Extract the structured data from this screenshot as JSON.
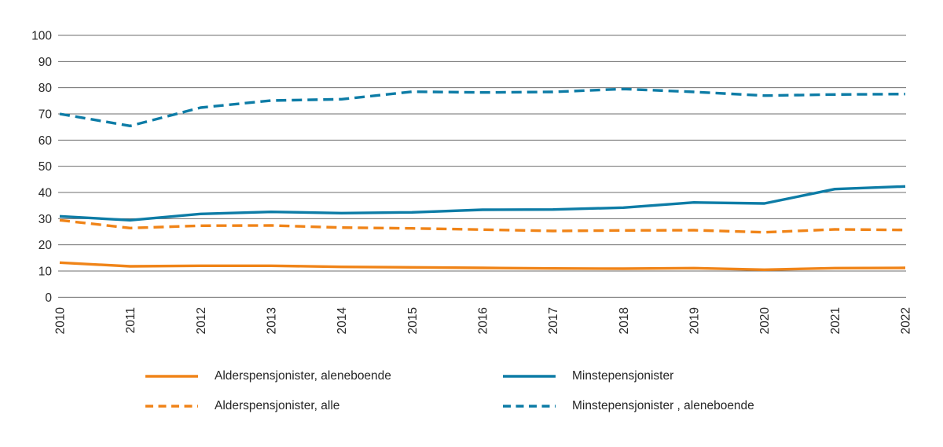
{
  "chart_data": {
    "type": "line",
    "x": [
      "2010",
      "2011",
      "2012",
      "2013",
      "2014",
      "2015",
      "2016",
      "2017",
      "2018",
      "2019",
      "2020",
      "2021",
      "2022"
    ],
    "series": [
      {
        "name": "Alderspensjonister, aleneboende",
        "color": "#f08418",
        "dashed": false,
        "values": [
          13.2,
          11.8,
          12.0,
          12.0,
          11.6,
          11.4,
          11.2,
          11.0,
          10.9,
          11.1,
          10.5,
          11.1,
          11.2
        ]
      },
      {
        "name": "Alderspensjonister, alle",
        "color": "#f08418",
        "dashed": true,
        "values": [
          29.4,
          26.4,
          27.3,
          27.4,
          26.6,
          26.3,
          25.8,
          25.3,
          25.5,
          25.6,
          24.8,
          25.9,
          25.7
        ]
      },
      {
        "name": "Minstepensjonister",
        "color": "#0d7ca6",
        "dashed": false,
        "values": [
          30.9,
          29.4,
          31.8,
          32.6,
          32.1,
          32.4,
          33.4,
          33.5,
          34.2,
          36.2,
          35.8,
          41.3,
          42.3
        ]
      },
      {
        "name": "Minstepensjonister , aleneboende",
        "color": "#0d7ca6",
        "dashed": true,
        "values": [
          70.0,
          65.4,
          72.4,
          75.1,
          75.6,
          78.5,
          78.2,
          78.4,
          79.5,
          78.4,
          77.0,
          77.4,
          77.6
        ]
      }
    ],
    "yticks": [
      0,
      10,
      20,
      30,
      40,
      50,
      60,
      70,
      80,
      90,
      100
    ],
    "ylim": [
      0,
      100
    ],
    "xlabel": "",
    "ylabel": "",
    "title": "",
    "grid": true,
    "x_label_rotation": -90,
    "legend_position": "bottom",
    "legend_columns": [
      [
        0,
        1
      ],
      [
        2,
        3
      ]
    ]
  },
  "styles": {
    "grid_color": "#6d6d6d",
    "text_color": "#262626",
    "background": "#ffffff",
    "orange": "#f08418",
    "blue": "#0d7ca6"
  }
}
